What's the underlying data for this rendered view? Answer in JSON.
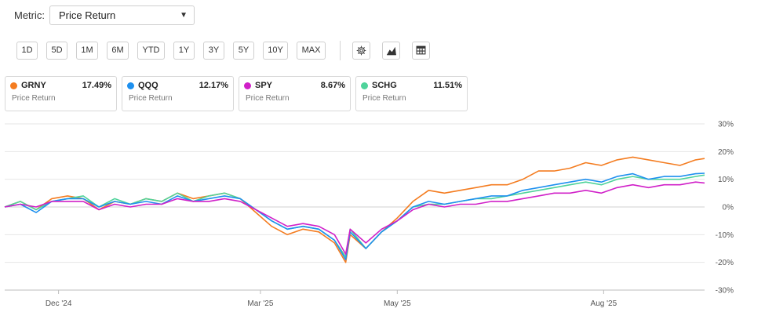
{
  "metric": {
    "label": "Metric:",
    "value": "Price Return"
  },
  "ranges": [
    "1D",
    "5D",
    "1M",
    "6M",
    "YTD",
    "1Y",
    "3Y",
    "5Y",
    "10Y",
    "MAX"
  ],
  "icons": [
    "gear-icon",
    "area-chart-icon",
    "table-icon"
  ],
  "legend_cards": [
    {
      "ticker": "GRNY",
      "value": "17.49%",
      "sub": "Price Return",
      "color": "#f47c20"
    },
    {
      "ticker": "QQQ",
      "value": "12.17%",
      "sub": "Price Return",
      "color": "#1e90ef"
    },
    {
      "ticker": "SPY",
      "value": "8.67%",
      "sub": "Price Return",
      "color": "#d020c8"
    },
    {
      "ticker": "SCHG",
      "value": "11.51%",
      "sub": "Price Return",
      "color": "#4fd39b"
    }
  ],
  "chart_data": {
    "type": "line",
    "xlabel": "",
    "ylabel": "",
    "ylim": [
      -30,
      30
    ],
    "y_ticks": [
      30,
      20,
      10,
      0,
      -10,
      -20,
      -30
    ],
    "y_tick_labels": [
      "30%",
      "20%",
      "10%",
      "0%",
      "-10%",
      "-20%",
      "-30%"
    ],
    "x_range": [
      "2024-11-07",
      "2025-09-15"
    ],
    "x_ticks": [
      "2024-12-01",
      "2025-03-01",
      "2025-05-01",
      "2025-08-01"
    ],
    "x_tick_labels": [
      "Dec '24",
      "Mar '25",
      "May '25",
      "Aug '25"
    ],
    "grid": true,
    "series": [
      {
        "name": "GRNY",
        "color": "#f47c20",
        "points": [
          [
            "2024-11-07",
            0
          ],
          [
            "2024-11-14",
            2
          ],
          [
            "2024-11-21",
            -1
          ],
          [
            "2024-11-28",
            3
          ],
          [
            "2024-12-05",
            4
          ],
          [
            "2024-12-12",
            3
          ],
          [
            "2024-12-19",
            -1
          ],
          [
            "2024-12-26",
            2
          ],
          [
            "2025-01-02",
            1
          ],
          [
            "2025-01-09",
            3
          ],
          [
            "2025-01-16",
            2
          ],
          [
            "2025-01-23",
            5
          ],
          [
            "2025-01-30",
            3
          ],
          [
            "2025-02-06",
            4
          ],
          [
            "2025-02-13",
            5
          ],
          [
            "2025-02-20",
            3
          ],
          [
            "2025-02-27",
            -2
          ],
          [
            "2025-03-06",
            -7
          ],
          [
            "2025-03-13",
            -10
          ],
          [
            "2025-03-20",
            -8
          ],
          [
            "2025-03-27",
            -9
          ],
          [
            "2025-04-03",
            -13
          ],
          [
            "2025-04-08",
            -20
          ],
          [
            "2025-04-10",
            -10
          ],
          [
            "2025-04-17",
            -15
          ],
          [
            "2025-04-24",
            -9
          ],
          [
            "2025-05-01",
            -4
          ],
          [
            "2025-05-08",
            2
          ],
          [
            "2025-05-15",
            6
          ],
          [
            "2025-05-22",
            5
          ],
          [
            "2025-05-29",
            6
          ],
          [
            "2025-06-05",
            7
          ],
          [
            "2025-06-12",
            8
          ],
          [
            "2025-06-19",
            8
          ],
          [
            "2025-06-26",
            10
          ],
          [
            "2025-07-03",
            13
          ],
          [
            "2025-07-10",
            13
          ],
          [
            "2025-07-17",
            14
          ],
          [
            "2025-07-24",
            16
          ],
          [
            "2025-07-31",
            15
          ],
          [
            "2025-08-07",
            17
          ],
          [
            "2025-08-14",
            18
          ],
          [
            "2025-08-21",
            17
          ],
          [
            "2025-08-28",
            16
          ],
          [
            "2025-09-04",
            15
          ],
          [
            "2025-09-11",
            17
          ],
          [
            "2025-09-15",
            17.49
          ]
        ]
      },
      {
        "name": "QQQ",
        "color": "#1e90ef",
        "points": [
          [
            "2024-11-07",
            0
          ],
          [
            "2024-11-14",
            1
          ],
          [
            "2024-11-21",
            -2
          ],
          [
            "2024-11-28",
            2
          ],
          [
            "2024-12-05",
            3
          ],
          [
            "2024-12-12",
            3
          ],
          [
            "2024-12-19",
            0
          ],
          [
            "2024-12-26",
            2
          ],
          [
            "2025-01-02",
            1
          ],
          [
            "2025-01-09",
            2
          ],
          [
            "2025-01-16",
            1
          ],
          [
            "2025-01-23",
            4
          ],
          [
            "2025-01-30",
            2
          ],
          [
            "2025-02-06",
            3
          ],
          [
            "2025-02-13",
            4
          ],
          [
            "2025-02-20",
            3
          ],
          [
            "2025-02-27",
            -1
          ],
          [
            "2025-03-06",
            -5
          ],
          [
            "2025-03-13",
            -8
          ],
          [
            "2025-03-20",
            -7
          ],
          [
            "2025-03-27",
            -8
          ],
          [
            "2025-04-03",
            -12
          ],
          [
            "2025-04-08",
            -19
          ],
          [
            "2025-04-10",
            -9
          ],
          [
            "2025-04-17",
            -15
          ],
          [
            "2025-04-24",
            -9
          ],
          [
            "2025-05-01",
            -5
          ],
          [
            "2025-05-08",
            0
          ],
          [
            "2025-05-15",
            2
          ],
          [
            "2025-05-22",
            1
          ],
          [
            "2025-05-29",
            2
          ],
          [
            "2025-06-05",
            3
          ],
          [
            "2025-06-12",
            4
          ],
          [
            "2025-06-19",
            4
          ],
          [
            "2025-06-26",
            6
          ],
          [
            "2025-07-03",
            7
          ],
          [
            "2025-07-10",
            8
          ],
          [
            "2025-07-17",
            9
          ],
          [
            "2025-07-24",
            10
          ],
          [
            "2025-07-31",
            9
          ],
          [
            "2025-08-07",
            11
          ],
          [
            "2025-08-14",
            12
          ],
          [
            "2025-08-21",
            10
          ],
          [
            "2025-08-28",
            11
          ],
          [
            "2025-09-04",
            11
          ],
          [
            "2025-09-11",
            12
          ],
          [
            "2025-09-15",
            12.17
          ]
        ]
      },
      {
        "name": "SPY",
        "color": "#d020c8",
        "points": [
          [
            "2024-11-07",
            0
          ],
          [
            "2024-11-14",
            1
          ],
          [
            "2024-11-21",
            0
          ],
          [
            "2024-11-28",
            2
          ],
          [
            "2024-12-05",
            2
          ],
          [
            "2024-12-12",
            2
          ],
          [
            "2024-12-19",
            -1
          ],
          [
            "2024-12-26",
            1
          ],
          [
            "2025-01-02",
            0
          ],
          [
            "2025-01-09",
            1
          ],
          [
            "2025-01-16",
            1
          ],
          [
            "2025-01-23",
            3
          ],
          [
            "2025-01-30",
            2
          ],
          [
            "2025-02-06",
            2
          ],
          [
            "2025-02-13",
            3
          ],
          [
            "2025-02-20",
            2
          ],
          [
            "2025-02-27",
            -1
          ],
          [
            "2025-03-06",
            -4
          ],
          [
            "2025-03-13",
            -7
          ],
          [
            "2025-03-20",
            -6
          ],
          [
            "2025-03-27",
            -7
          ],
          [
            "2025-04-03",
            -10
          ],
          [
            "2025-04-08",
            -17
          ],
          [
            "2025-04-10",
            -8
          ],
          [
            "2025-04-17",
            -13
          ],
          [
            "2025-04-24",
            -8
          ],
          [
            "2025-05-01",
            -5
          ],
          [
            "2025-05-08",
            -1
          ],
          [
            "2025-05-15",
            1
          ],
          [
            "2025-05-22",
            0
          ],
          [
            "2025-05-29",
            1
          ],
          [
            "2025-06-05",
            1
          ],
          [
            "2025-06-12",
            2
          ],
          [
            "2025-06-19",
            2
          ],
          [
            "2025-06-26",
            3
          ],
          [
            "2025-07-03",
            4
          ],
          [
            "2025-07-10",
            5
          ],
          [
            "2025-07-17",
            5
          ],
          [
            "2025-07-24",
            6
          ],
          [
            "2025-07-31",
            5
          ],
          [
            "2025-08-07",
            7
          ],
          [
            "2025-08-14",
            8
          ],
          [
            "2025-08-21",
            7
          ],
          [
            "2025-08-28",
            8
          ],
          [
            "2025-09-04",
            8
          ],
          [
            "2025-09-11",
            9
          ],
          [
            "2025-09-15",
            8.67
          ]
        ]
      },
      {
        "name": "SCHG",
        "color": "#4fd39b",
        "points": [
          [
            "2024-11-07",
            0
          ],
          [
            "2024-11-14",
            2
          ],
          [
            "2024-11-21",
            -1
          ],
          [
            "2024-11-28",
            2
          ],
          [
            "2024-12-05",
            3
          ],
          [
            "2024-12-12",
            4
          ],
          [
            "2024-12-19",
            0
          ],
          [
            "2024-12-26",
            3
          ],
          [
            "2025-01-02",
            1
          ],
          [
            "2025-01-09",
            3
          ],
          [
            "2025-01-16",
            2
          ],
          [
            "2025-01-23",
            5
          ],
          [
            "2025-01-30",
            2
          ],
          [
            "2025-02-06",
            4
          ],
          [
            "2025-02-13",
            5
          ],
          [
            "2025-02-20",
            3
          ],
          [
            "2025-02-27",
            -1
          ],
          [
            "2025-03-06",
            -5
          ],
          [
            "2025-03-13",
            -8
          ],
          [
            "2025-03-20",
            -7
          ],
          [
            "2025-03-27",
            -8
          ],
          [
            "2025-04-03",
            -12
          ],
          [
            "2025-04-08",
            -18
          ],
          [
            "2025-04-10",
            -8
          ],
          [
            "2025-04-17",
            -15
          ],
          [
            "2025-04-24",
            -9
          ],
          [
            "2025-05-01",
            -5
          ],
          [
            "2025-05-08",
            0
          ],
          [
            "2025-05-15",
            1
          ],
          [
            "2025-05-22",
            1
          ],
          [
            "2025-05-29",
            2
          ],
          [
            "2025-06-05",
            3
          ],
          [
            "2025-06-12",
            3
          ],
          [
            "2025-06-19",
            4
          ],
          [
            "2025-06-26",
            5
          ],
          [
            "2025-07-03",
            6
          ],
          [
            "2025-07-10",
            7
          ],
          [
            "2025-07-17",
            8
          ],
          [
            "2025-07-24",
            9
          ],
          [
            "2025-07-31",
            8
          ],
          [
            "2025-08-07",
            10
          ],
          [
            "2025-08-14",
            11
          ],
          [
            "2025-08-21",
            10
          ],
          [
            "2025-08-28",
            10
          ],
          [
            "2025-09-04",
            10
          ],
          [
            "2025-09-11",
            11
          ],
          [
            "2025-09-15",
            11.51
          ]
        ]
      }
    ]
  }
}
